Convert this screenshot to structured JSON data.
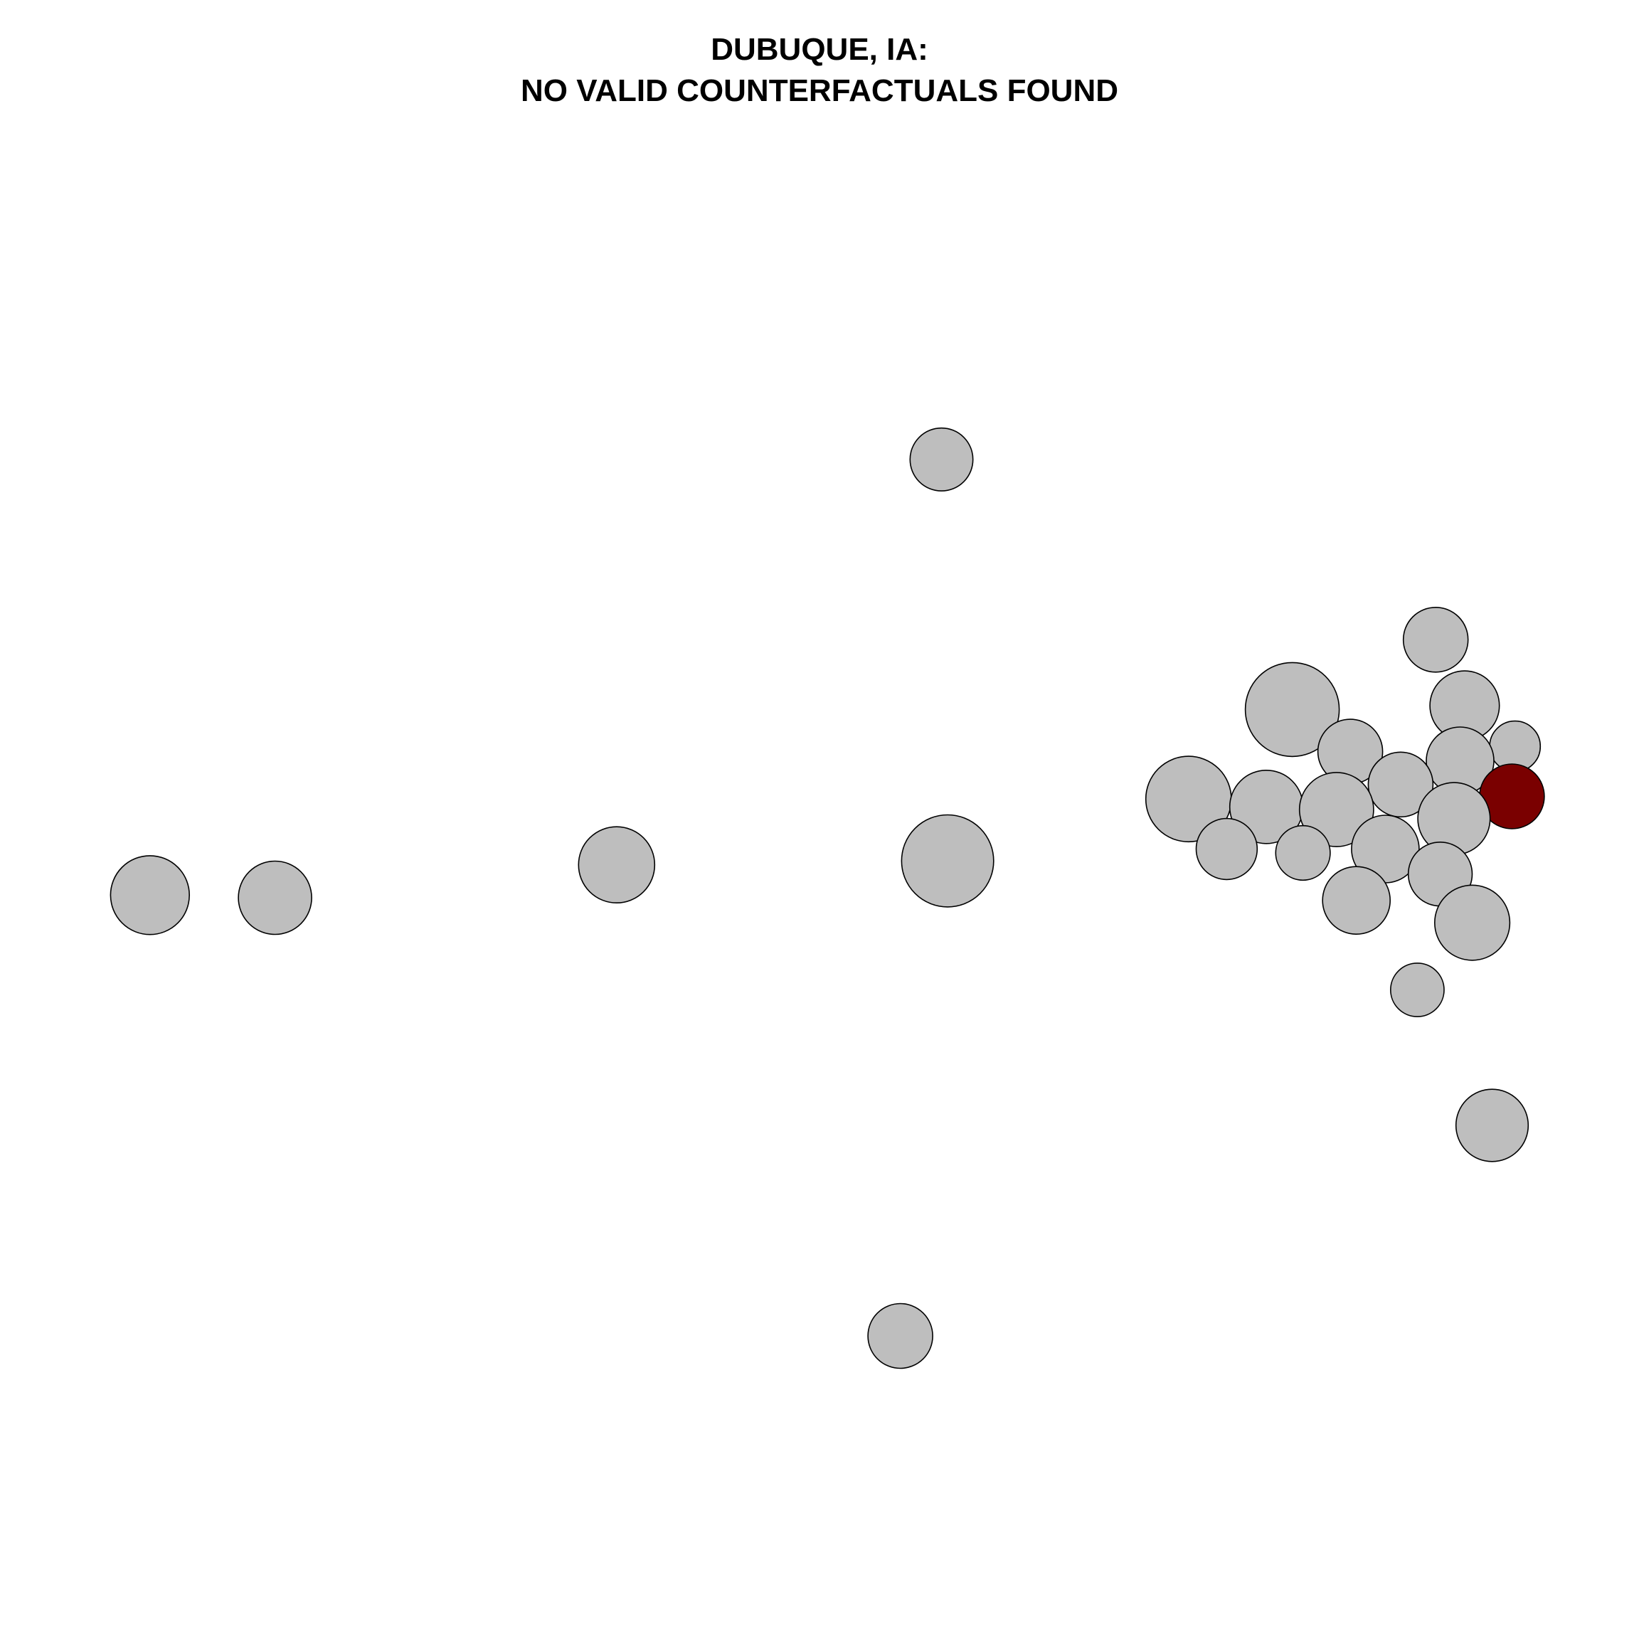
{
  "chart_data": {
    "type": "scatter",
    "title_lines": [
      "DUBUQUE, IA:",
      "NO VALID COUNTERFACTUALS FOUND"
    ],
    "xlabel": "",
    "ylabel": "",
    "axes_visible": false,
    "grid": false,
    "legend": "none",
    "colors": {
      "default": "#bebebe",
      "highlight": "#7a0000",
      "stroke": "#000000"
    },
    "xlim": [
      0,
      100
    ],
    "ylim": [
      0,
      100
    ],
    "points": [
      {
        "x": 58.0,
        "y": 78.6,
        "size": 0.67,
        "highlight": false
      },
      {
        "x": 90.4,
        "y": 64.9,
        "size": 0.69,
        "highlight": false
      },
      {
        "x": 81.0,
        "y": 59.6,
        "size": 1.0,
        "highlight": false
      },
      {
        "x": 92.3,
        "y": 59.9,
        "size": 0.74,
        "highlight": false
      },
      {
        "x": 84.8,
        "y": 56.4,
        "size": 0.69,
        "highlight": false
      },
      {
        "x": 95.6,
        "y": 56.8,
        "size": 0.54,
        "highlight": false
      },
      {
        "x": 92.0,
        "y": 55.7,
        "size": 0.72,
        "highlight": false
      },
      {
        "x": 88.1,
        "y": 53.9,
        "size": 0.69,
        "highlight": false
      },
      {
        "x": 95.4,
        "y": 53.0,
        "size": 0.69,
        "highlight": true
      },
      {
        "x": 74.2,
        "y": 52.8,
        "size": 0.91,
        "highlight": false
      },
      {
        "x": 79.3,
        "y": 52.2,
        "size": 0.78,
        "highlight": false
      },
      {
        "x": 83.9,
        "y": 52.0,
        "size": 0.79,
        "highlight": false
      },
      {
        "x": 91.6,
        "y": 51.3,
        "size": 0.77,
        "highlight": false
      },
      {
        "x": 76.7,
        "y": 49.0,
        "size": 0.65,
        "highlight": false
      },
      {
        "x": 81.7,
        "y": 48.7,
        "size": 0.58,
        "highlight": false
      },
      {
        "x": 87.1,
        "y": 49.0,
        "size": 0.72,
        "highlight": false
      },
      {
        "x": 58.4,
        "y": 48.1,
        "size": 0.98,
        "highlight": false
      },
      {
        "x": 36.7,
        "y": 47.8,
        "size": 0.81,
        "highlight": false
      },
      {
        "x": 90.7,
        "y": 47.1,
        "size": 0.68,
        "highlight": false
      },
      {
        "x": 6.1,
        "y": 45.5,
        "size": 0.84,
        "highlight": false
      },
      {
        "x": 14.3,
        "y": 45.3,
        "size": 0.78,
        "highlight": false
      },
      {
        "x": 85.2,
        "y": 45.1,
        "size": 0.72,
        "highlight": false
      },
      {
        "x": 92.8,
        "y": 43.4,
        "size": 0.8,
        "highlight": false
      },
      {
        "x": 89.2,
        "y": 38.3,
        "size": 0.57,
        "highlight": false
      },
      {
        "x": 94.1,
        "y": 28.0,
        "size": 0.77,
        "highlight": false
      },
      {
        "x": 55.3,
        "y": 12.0,
        "size": 0.69,
        "highlight": false
      }
    ]
  }
}
